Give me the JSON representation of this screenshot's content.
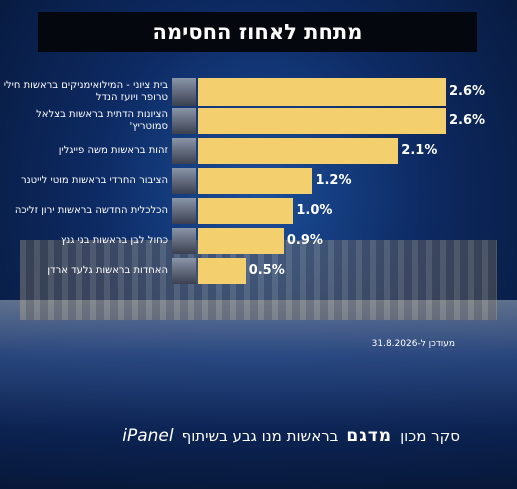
{
  "chart_data": {
    "type": "bar",
    "orientation": "horizontal",
    "title": "מתחת לאחוז החסימה",
    "categories": [
      "בית ציוני - המילואימניקים בראשות חילי טרופר ויועז הנדל",
      "הציונות הדתית בראשות בצלאל סמוטריץ'",
      "זהות בראשות משה פייגלין",
      "הציבור החרדי בראשות מוטי לייטנר",
      "הכלכלית החדשה בראשות ירון זליכה",
      "כחול לבן בראשות בני גנץ",
      "האחדות בראשות גלעד ארדן"
    ],
    "values": [
      2.6,
      2.6,
      2.1,
      1.2,
      1.0,
      0.9,
      0.5
    ],
    "value_labels": [
      "2.6%",
      "2.6%",
      "2.1%",
      "1.2%",
      "1.0%",
      "0.9%",
      "0.5%"
    ],
    "color": "#f3cf6e",
    "note": "מעודכן ל-31.8.2026",
    "footer": {
      "survey": "סקר מכון",
      "logo": "מדגם",
      "credit": "בראשות מנו גבע בשיתוף",
      "partner": "iPanel"
    }
  }
}
